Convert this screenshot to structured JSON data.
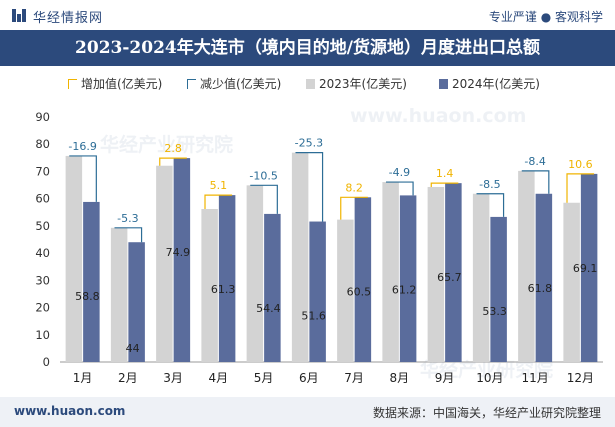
{
  "header": {
    "brand": "华经情报网",
    "slogan": "专业严谨 ● 客观科学"
  },
  "watermarks": [
    "华经产业研究院",
    "www.huaon.com",
    "华经产业研究院"
  ],
  "chart_data": {
    "type": "bar",
    "title": "2023-2024年大连市（境内目的地/货源地）月度进出口总额",
    "categories": [
      "1月",
      "2月",
      "3月",
      "4月",
      "5月",
      "6月",
      "7月",
      "8月",
      "9月",
      "10月",
      "11月",
      "12月"
    ],
    "series": [
      {
        "name": "2023年(亿美元)",
        "color": "#d3d3d3",
        "values": [
          75.7,
          49.3,
          72.1,
          56.2,
          64.9,
          76.9,
          52.3,
          66.1,
          64.3,
          61.8,
          70.2,
          58.5
        ]
      },
      {
        "name": "2024年(亿美元)",
        "color": "#5a6c9c",
        "values": [
          58.8,
          44,
          74.9,
          61.3,
          54.4,
          51.6,
          60.5,
          61.2,
          65.7,
          53.3,
          61.8,
          69.1
        ]
      }
    ],
    "differences": [
      -16.9,
      -5.3,
      2.8,
      5.1,
      -10.5,
      -25.3,
      8.2,
      -4.9,
      1.4,
      -8.5,
      -8.4,
      10.6
    ],
    "diff_series": {
      "increase": {
        "name": "增加值(亿美元)",
        "color": "#f0b400"
      },
      "decrease": {
        "name": "减少值(亿美元)",
        "color": "#2d6d96"
      }
    },
    "ylim": [
      0,
      90
    ],
    "yticks": [
      0,
      10,
      20,
      30,
      40,
      50,
      60,
      70,
      80,
      90
    ],
    "xlabel": "",
    "ylabel": "",
    "grid": false,
    "legend_position": "top"
  },
  "footer": {
    "website": "www.huaon.com",
    "source": "数据来源：中国海关，华经产业研究院整理"
  }
}
